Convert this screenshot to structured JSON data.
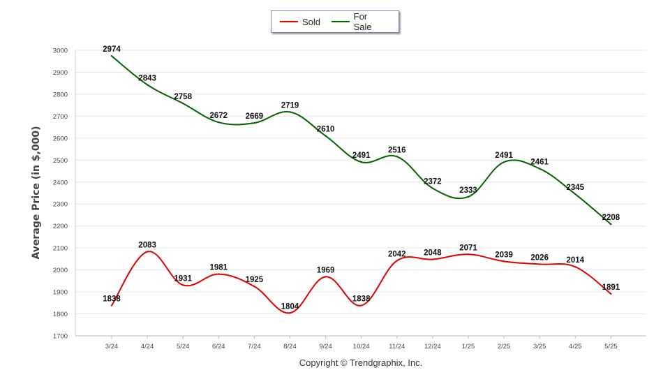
{
  "legend": {
    "items": [
      {
        "label": "Sold",
        "color": "#e00000"
      },
      {
        "label": "For Sale",
        "color": "#006400"
      }
    ]
  },
  "footer": {
    "copyright": "Copyright © Trendgraphix, Inc."
  },
  "chart_data": {
    "type": "line",
    "title": "",
    "xlabel": "",
    "ylabel": "Average Price (in $,000)",
    "ylim": [
      1700,
      3000
    ],
    "yticks": [
      1700,
      1800,
      1900,
      2000,
      2100,
      2200,
      2300,
      2400,
      2500,
      2600,
      2700,
      2800,
      2900,
      3000
    ],
    "grid": "horizontal",
    "legend_position": "top-center",
    "categories": [
      "3/24",
      "4/24",
      "5/24",
      "6/24",
      "7/24",
      "8/24",
      "9/24",
      "10/24",
      "11/24",
      "12/24",
      "1/25",
      "2/25",
      "3/25",
      "4/25",
      "5/25"
    ],
    "series": [
      {
        "name": "Sold",
        "color": "#e00000",
        "values": [
          1838,
          2083,
          1931,
          1981,
          1925,
          1804,
          1969,
          1838,
          2042,
          2048,
          2071,
          2039,
          2026,
          2014,
          1891
        ]
      },
      {
        "name": "For Sale",
        "color": "#006400",
        "values": [
          2974,
          2843,
          2758,
          2672,
          2669,
          2719,
          2610,
          2491,
          2516,
          2372,
          2333,
          2491,
          2461,
          2345,
          2208
        ]
      }
    ]
  }
}
